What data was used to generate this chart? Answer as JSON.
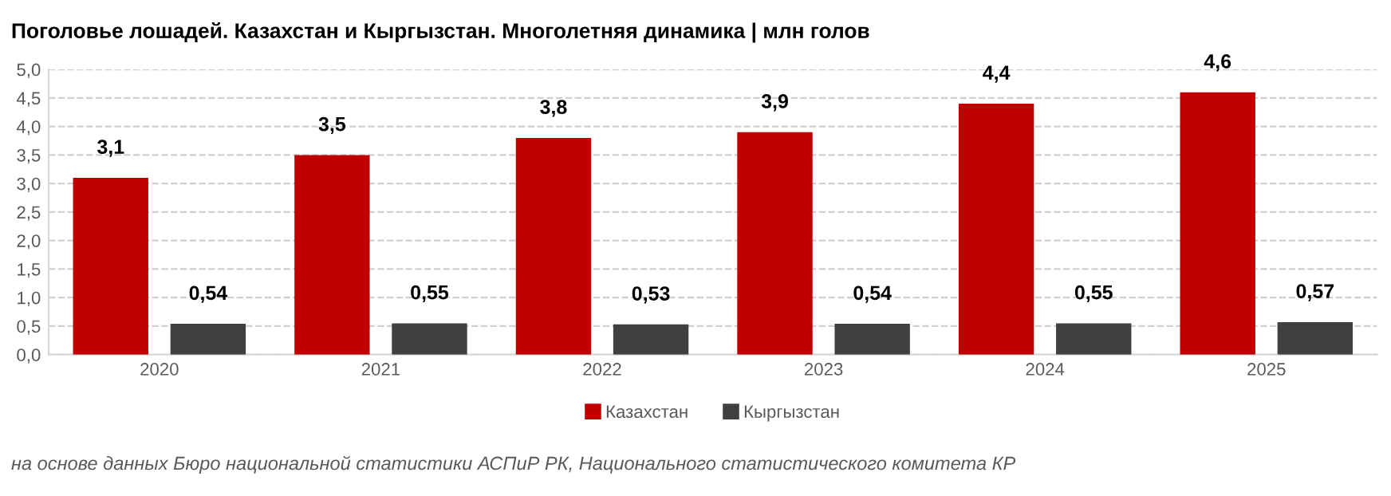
{
  "chart_data": {
    "type": "bar",
    "title": "Поголовье лошадей. Казахстан и Кыргызстан. Многолетняя динамика | млн голов",
    "categories": [
      "2020",
      "2021",
      "2022",
      "2023",
      "2024",
      "2025"
    ],
    "series": [
      {
        "name": "Казахстан",
        "color": "#c00000",
        "values": [
          3.1,
          3.5,
          3.8,
          3.9,
          4.4,
          4.6
        ],
        "value_labels": [
          "3,1",
          "3,5",
          "3,8",
          "3,9",
          "4,4",
          "4,6"
        ]
      },
      {
        "name": "Кыргызстан",
        "color": "#404040",
        "values": [
          0.54,
          0.55,
          0.53,
          0.54,
          0.55,
          0.57
        ],
        "value_labels": [
          "0,54",
          "0,55",
          "0,53",
          "0,54",
          "0,55",
          "0,57"
        ]
      }
    ],
    "ylim": [
      0,
      5
    ],
    "yticks": [
      {
        "value": 0,
        "label": "0,0"
      },
      {
        "value": 0.5,
        "label": "0,5"
      },
      {
        "value": 1,
        "label": "1,0"
      },
      {
        "value": 1.5,
        "label": "1,5"
      },
      {
        "value": 2,
        "label": "2,0"
      },
      {
        "value": 2.5,
        "label": "2,5"
      },
      {
        "value": 3,
        "label": "3,0"
      },
      {
        "value": 3.5,
        "label": "3,5"
      },
      {
        "value": 4,
        "label": "4,0"
      },
      {
        "value": 4.5,
        "label": "4,5"
      },
      {
        "value": 5,
        "label": "5,0"
      }
    ],
    "grid": "y",
    "legend": "bottom",
    "annotations": [
      "на основе данных Бюро национальной статистики АСПиР РК, Национального статистического комитета КР"
    ]
  }
}
